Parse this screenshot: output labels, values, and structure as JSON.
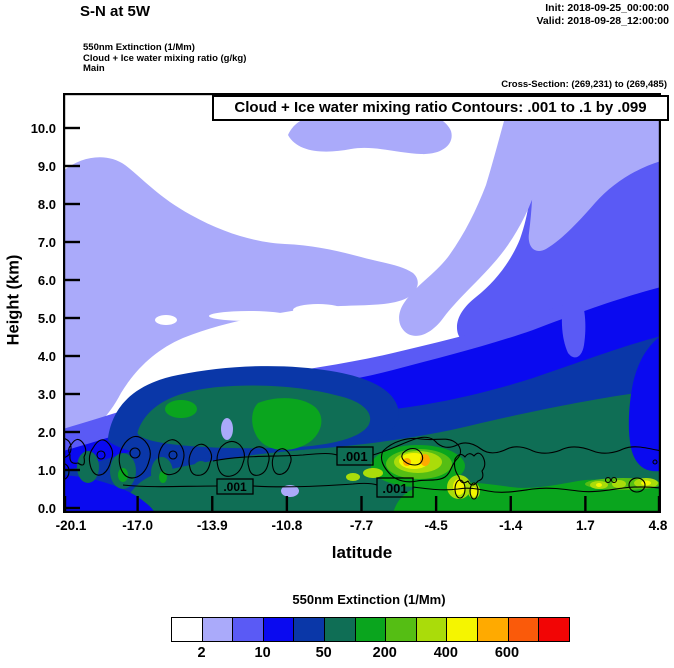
{
  "header": {
    "title": "S-N at 5W",
    "init": "Init: 2018-09-25_00:00:00",
    "valid": "Valid: 2018-09-28_12:00:00",
    "field_lines": [
      "550nm Extinction   (1/Mm)",
      "Cloud + Ice water mixing ratio   (g/kg)",
      "Main"
    ],
    "cross_section": "Cross-Section: (269,231) to (269,485)"
  },
  "plot": {
    "title_box": "Cloud + Ice water mixing ratio Contours: .001 to .1 by .099",
    "y_axis": {
      "label": "Height (km)",
      "ticks": [
        "10.0",
        "9.0",
        "8.0",
        "7.0",
        "6.0",
        "5.0",
        "4.0",
        "3.0",
        "2.0",
        "1.0",
        "0.0"
      ]
    },
    "x_axis": {
      "label": "latitude",
      "ticks": [
        "-20.1",
        "-17.0",
        "-13.9",
        "-10.8",
        "-7.7",
        "-4.5",
        "-1.4",
        "1.7",
        "4.8"
      ]
    },
    "contour_labels": [
      ".001",
      ".001",
      ".001"
    ]
  },
  "colorbar": {
    "title": "550nm Extinction  (1/Mm)",
    "colors": [
      "#FFFFFF",
      "#AAAAFA",
      "#5A5AF5",
      "#0A0AF0",
      "#0A37A8",
      "#0F6E55",
      "#0AA51E",
      "#55BE14",
      "#AADC0A",
      "#F5F500",
      "#FFAA00",
      "#FA5A0A",
      "#F20505"
    ],
    "tick_labels": [
      "2",
      "10",
      "50",
      "200",
      "400",
      "600"
    ],
    "tick_boundary_indices": [
      1,
      3,
      5,
      7,
      9,
      11
    ]
  },
  "chart_data": {
    "type": "heatmap",
    "title": "Cloud + Ice water mixing ratio Contours: .001 to .1 by .099",
    "subtitle": "S-N at 5W",
    "xlabel": "latitude",
    "ylabel": "Height (km)",
    "x_ticks": [
      -20.1,
      -17.0,
      -13.9,
      -10.8,
      -7.7,
      -4.5,
      -1.4,
      1.7,
      4.8
    ],
    "y_ticks": [
      0.0,
      1.0,
      2.0,
      3.0,
      4.0,
      5.0,
      6.0,
      7.0,
      8.0,
      9.0,
      10.0
    ],
    "xlim": [
      -20.1,
      4.8
    ],
    "ylim": [
      0.0,
      11.0
    ],
    "fill_field": "550nm Extinction (1/Mm)",
    "fill_level_labels": [
      2,
      10,
      50,
      200,
      400,
      600
    ],
    "fill_colors": [
      "#FFFFFF",
      "#AAAAFA",
      "#5A5AF5",
      "#0A0AF0",
      "#0A37A8",
      "#0F6E55",
      "#0AA51E",
      "#55BE14",
      "#AADC0A",
      "#F5F500",
      "#FFAA00",
      "#FA5A0A",
      "#F20505"
    ],
    "contour_field": "Cloud + Ice water mixing ratio (g/kg)",
    "contour_levels": [
      0.001,
      0.1
    ],
    "contour_label": ".001",
    "legend_position": "bottom",
    "grid": false,
    "approx_regions": [
      {
        "desc": "clear (white, <2/Mm) upper troposphere above ~6 km over most of section, lowest values mid-section"
      },
      {
        "desc": "lavender 2-10/Mm layer: large lobe 4.5-9 km between lat -20 and -13, band along top-right descending from 10.5 km at lat -2 to 6 km at lat 4.8"
      },
      {
        "desc": "blue 10-50/Mm layer filling 2-6 km, deepening toward north (right), reaching 8-9 km near lat 4.8"
      },
      {
        "desc": "teal/green 50-300/Mm anvil 1.5-3.5 km from lat -18 to 4.8 with green cores near lat -14 and -6"
      },
      {
        "desc": "yellow-orange maxima 400-600/Mm near 1 km at lat -7.5 to -6, smaller yellow spots at lat -4.5 and -1 to 1"
      },
      {
        "desc": "cloud+ice mixing ratio .001 g/kg contours: chain of small cells 0.5-1.5 km from lat -20 to -12, elongated contour pair 0.5-1.5 km from lat -11 to 4.8 with three .001 labels"
      }
    ]
  }
}
